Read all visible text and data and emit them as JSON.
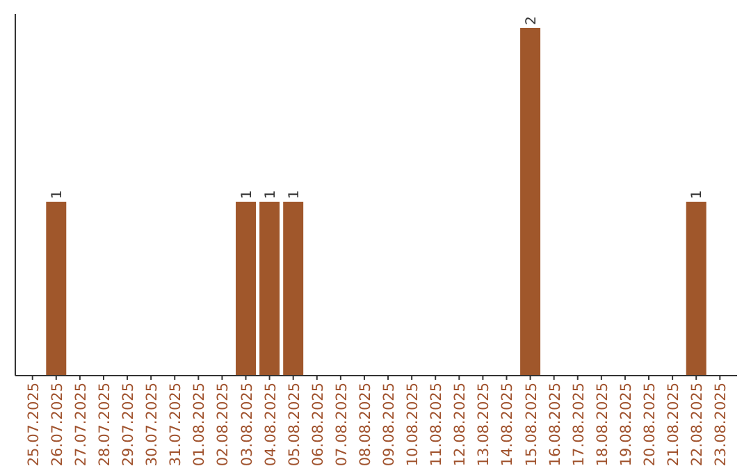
{
  "chart_data": {
    "type": "bar",
    "categories": [
      "25.07.2025",
      "26.07.2025",
      "27.07.2025",
      "28.07.2025",
      "29.07.2025",
      "30.07.2025",
      "31.07.2025",
      "01.08.2025",
      "02.08.2025",
      "03.08.2025",
      "04.08.2025",
      "05.08.2025",
      "06.08.2025",
      "07.08.2025",
      "08.08.2025",
      "09.08.2025",
      "10.08.2025",
      "11.08.2025",
      "12.08.2025",
      "13.08.2025",
      "14.08.2025",
      "15.08.2025",
      "16.08.2025",
      "17.08.2025",
      "18.08.2025",
      "19.08.2025",
      "20.08.2025",
      "21.08.2025",
      "22.08.2025",
      "23.08.2025"
    ],
    "values": [
      0,
      1,
      0,
      0,
      0,
      0,
      0,
      0,
      0,
      1,
      1,
      1,
      0,
      0,
      0,
      0,
      0,
      0,
      0,
      0,
      0,
      2,
      0,
      0,
      0,
      0,
      0,
      0,
      1,
      0
    ],
    "value_labels": [
      null,
      "1",
      null,
      null,
      null,
      null,
      null,
      null,
      null,
      "1",
      "1",
      "1",
      null,
      null,
      null,
      null,
      null,
      null,
      null,
      null,
      null,
      "2",
      null,
      null,
      null,
      null,
      null,
      null,
      "1",
      null
    ],
    "color": "#a0572b",
    "ylim": [
      0,
      2.08
    ]
  }
}
